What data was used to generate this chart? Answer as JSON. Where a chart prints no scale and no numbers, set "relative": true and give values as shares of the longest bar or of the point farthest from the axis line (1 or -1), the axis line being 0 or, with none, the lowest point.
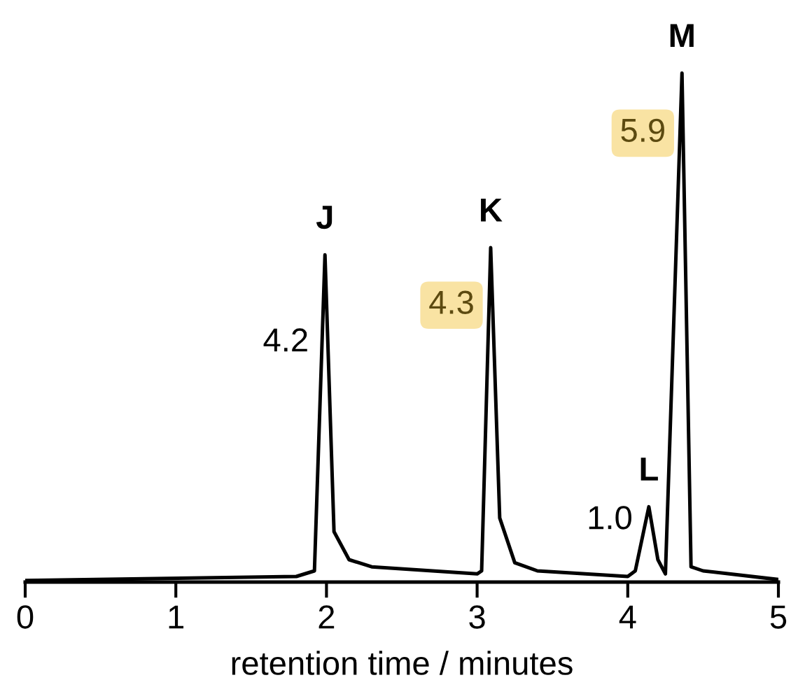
{
  "chart_data": {
    "type": "line",
    "relative": true,
    "xlabel": "retention time / minutes",
    "xlim": [
      0,
      5
    ],
    "xticks": [
      0,
      1,
      2,
      3,
      4,
      5
    ],
    "grid": false,
    "legend": false,
    "marker": "none",
    "line_style": "solid",
    "series": [
      {
        "color": "#000000",
        "x": [
          0,
          1.8,
          1.92,
          1.99,
          2.05,
          2.15,
          2.3,
          3.0,
          3.03,
          3.09,
          3.15,
          3.25,
          3.4,
          4.0,
          4.05,
          4.14,
          4.2,
          4.25,
          4.36,
          4.42,
          4.5,
          5.0
        ],
        "values": [
          0.003,
          0.011,
          0.022,
          0.643,
          0.099,
          0.044,
          0.03,
          0.016,
          0.022,
          0.657,
          0.126,
          0.038,
          0.022,
          0.011,
          0.022,
          0.148,
          0.044,
          0.016,
          1.0,
          0.03,
          0.022,
          0.005
        ]
      }
    ],
    "annotations": [
      {
        "text": "J",
        "x": 1.99,
        "y": 0.643
      },
      {
        "text": "4.2",
        "x": 1.96,
        "y": 0.47
      },
      {
        "text": "K",
        "x": 3.09,
        "y": 0.657
      },
      {
        "text": "4.3",
        "x": 3.06,
        "y": 0.544
      },
      {
        "text": "L",
        "x": 4.14,
        "y": 0.148
      },
      {
        "text": "1.0",
        "x": 4.11,
        "y": 0.121
      },
      {
        "text": "M",
        "x": 4.36,
        "y": 1.0
      },
      {
        "text": "5.9",
        "x": 4.33,
        "y": 0.882
      }
    ]
  }
}
